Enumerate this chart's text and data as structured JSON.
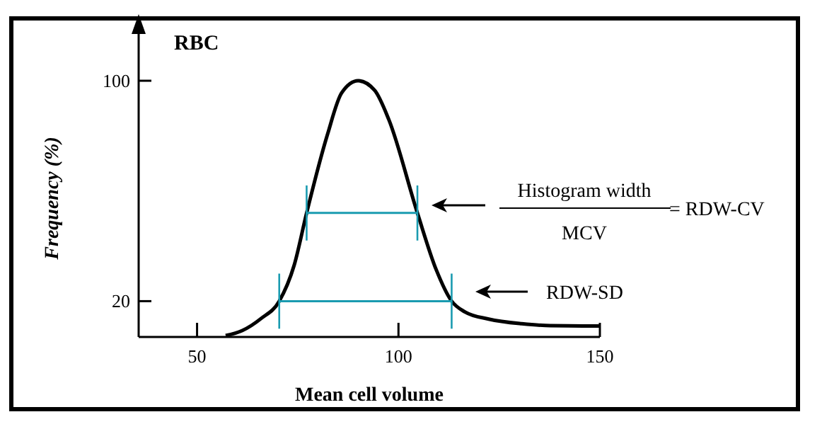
{
  "chart_data": {
    "type": "line",
    "title": "RBC",
    "xlabel": "Mean cell volume",
    "ylabel": "Frequency (%)",
    "xlim": [
      35.5,
      150
    ],
    "ylim": [
      7,
      118
    ],
    "xticks": [
      50,
      100,
      150
    ],
    "yticks": [
      20,
      100
    ],
    "grid": false,
    "marker": "none",
    "series": [
      {
        "color": "#000000",
        "x": [
          57.1,
          61.2,
          65.9,
          70.4,
          74.1,
          77.2,
          82.4,
          85.9,
          90,
          94.1,
          97.6,
          104.7,
          109.4,
          113.2,
          116.5,
          122.4,
          130.6,
          136.5,
          150
        ],
        "values": [
          7.5,
          9.3,
          13.7,
          20,
          33,
          52,
          80.6,
          95.6,
          100,
          96.5,
          85.9,
          52,
          31.3,
          20,
          16.1,
          13.5,
          11.8,
          11.2,
          11
        ]
      },
      {
        "color": "#1a9bb0",
        "x": [
          77.2,
          104.7
        ],
        "values": [
          52,
          52
        ],
        "errors": [
          10,
          10
        ]
      },
      {
        "color": "#1a9bb0",
        "x": [
          70.4,
          113.2
        ],
        "values": [
          20,
          20
        ],
        "errors": [
          10,
          10
        ]
      }
    ],
    "annotations": [
      "Histogram width",
      "MCV",
      "= RDW-CV",
      "RDW-SD"
    ]
  }
}
